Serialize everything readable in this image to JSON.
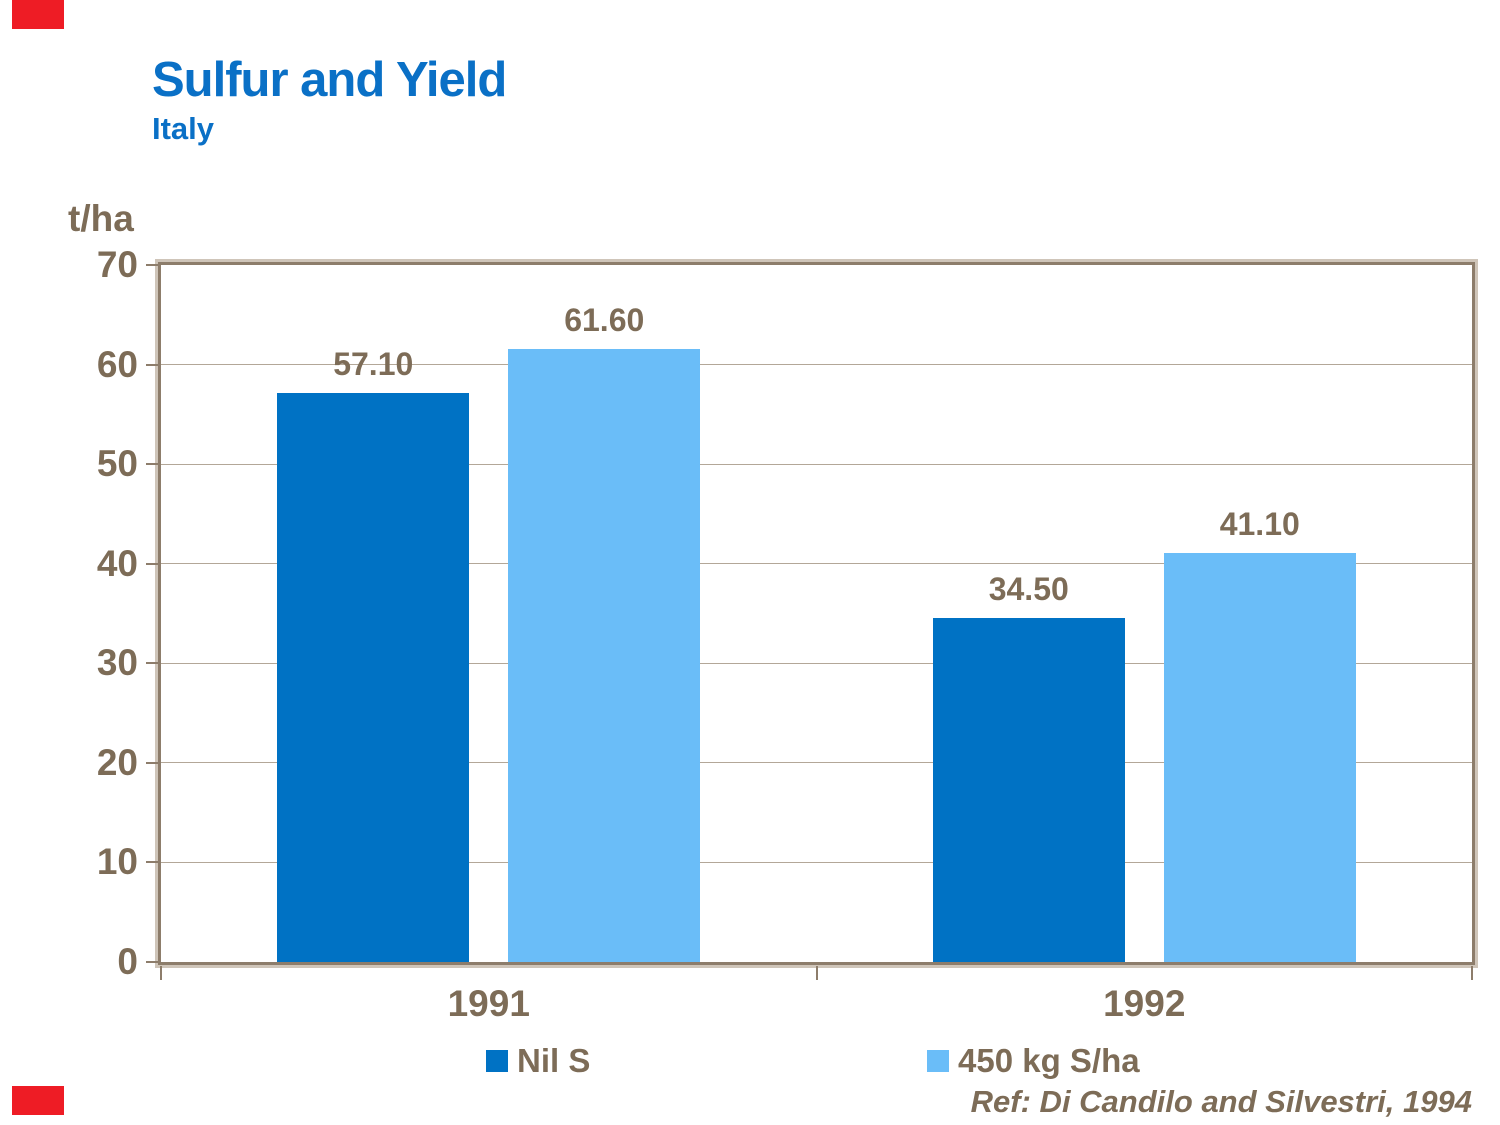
{
  "header": {
    "title": "Sulfur and Yield",
    "subtitle": "Italy"
  },
  "y_axis": {
    "unit_label": "t/ha",
    "ticks": [
      70,
      60,
      50,
      40,
      30,
      20,
      10,
      0
    ]
  },
  "chart_data": {
    "type": "bar",
    "title": "Sulfur and Yield",
    "subtitle": "Italy",
    "categories": [
      "1991",
      "1992"
    ],
    "series": [
      {
        "name": "Nil S",
        "color": "#0072C4",
        "values": [
          57.1,
          34.5
        ]
      },
      {
        "name": "450 kg S/ha",
        "color": "#6ABDF8",
        "values": [
          61.6,
          41.1
        ]
      }
    ],
    "value_label_decimals": 2,
    "xlabel": "",
    "ylabel": "t/ha",
    "ylim": [
      0,
      70
    ],
    "yticks": [
      0,
      10,
      20,
      30,
      40,
      50,
      60,
      70
    ],
    "grid": true,
    "legend_position": "bottom"
  },
  "footer": {
    "reference": "Ref: Di Candilo and Silvestri, 1994"
  },
  "colors": {
    "title_blue": "#0A70C6",
    "text_brown": "#7D6C57",
    "frame_tan": "#8D7D6B",
    "frame_shadow": "#CFC5B9",
    "gridline": "#B3A798",
    "series_dark_blue": "#0072C4",
    "series_light_blue": "#6ABDF8",
    "corner_accent_red": "#EE1C25"
  }
}
